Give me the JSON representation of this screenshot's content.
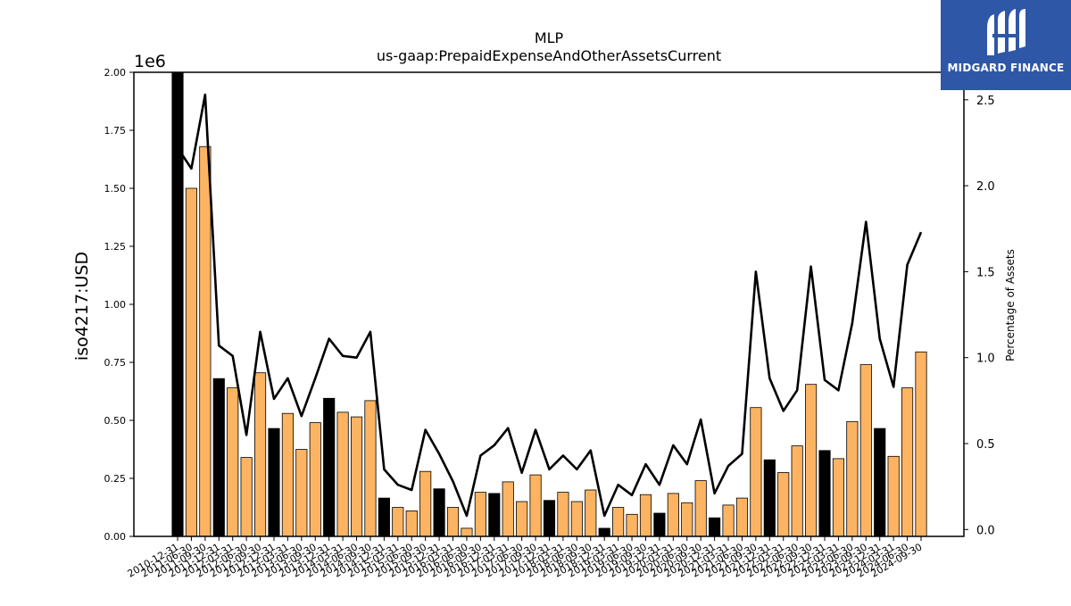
{
  "chart_data": {
    "type": "bar",
    "title": "MLP",
    "subtitle": "us-gaap:PrepaidExpenseAndOtherAssetsCurrent",
    "ylabel": "iso4217:USD",
    "ylabel_right": "Percentage of Assets",
    "y_scale_label": "1e6",
    "ylim": [
      0,
      2000000
    ],
    "ylim_right": [
      -0.04,
      2.66
    ],
    "yticks": [
      "0.00",
      "0.25",
      "0.50",
      "0.75",
      "1.00",
      "1.25",
      "1.50",
      "1.75",
      "2.00"
    ],
    "yticks_right": [
      "0.0",
      "0.5",
      "1.0",
      "1.5",
      "2.0",
      "2.5"
    ],
    "colors": {
      "annual": "#000000",
      "quarterly": "#fdb462",
      "line": "#000000"
    },
    "categories": [
      "2010-12-31",
      "2011-06-30",
      "2011-09-30",
      "2011-12-31",
      "2012-03-31",
      "2012-06-30",
      "2012-09-30",
      "2012-12-31",
      "2013-03-31",
      "2013-06-30",
      "2013-09-30",
      "2013-12-31",
      "2014-03-31",
      "2014-06-30",
      "2014-09-30",
      "2014-12-31",
      "2015-03-31",
      "2015-06-30",
      "2015-09-30",
      "2015-12-31",
      "2016-03-31",
      "2016-06-30",
      "2016-09-30",
      "2016-12-31",
      "2017-03-31",
      "2017-06-30",
      "2017-09-30",
      "2017-12-31",
      "2018-03-31",
      "2018-06-30",
      "2018-09-30",
      "2018-12-31",
      "2019-03-31",
      "2019-06-30",
      "2019-09-30",
      "2019-12-31",
      "2020-03-31",
      "2020-06-30",
      "2020-09-30",
      "2020-12-31",
      "2021-03-31",
      "2021-06-30",
      "2021-09-30",
      "2021-12-31",
      "2022-03-31",
      "2022-06-30",
      "2022-09-30",
      "2022-12-31",
      "2023-03-31",
      "2023-06-30",
      "2023-09-30",
      "2023-12-31",
      "2024-03-31",
      "2024-06-30",
      "2024-09-30"
    ],
    "values": [
      2000000,
      1500000,
      1680000,
      680000,
      640000,
      340000,
      705000,
      465000,
      530000,
      375000,
      490000,
      595000,
      535000,
      515000,
      585000,
      165000,
      125000,
      110000,
      280000,
      205000,
      125000,
      35000,
      190000,
      185000,
      235000,
      150000,
      265000,
      155000,
      190000,
      150000,
      200000,
      35000,
      125000,
      95000,
      180000,
      100000,
      185000,
      145000,
      240000,
      80000,
      135000,
      165000,
      555000,
      330000,
      275000,
      390000,
      655000,
      370000,
      335000,
      495000,
      740000,
      465000,
      345000,
      640000,
      795000
    ],
    "period_type": [
      "annual",
      "quarterly",
      "quarterly",
      "annual",
      "quarterly",
      "quarterly",
      "quarterly",
      "annual",
      "quarterly",
      "quarterly",
      "quarterly",
      "annual",
      "quarterly",
      "quarterly",
      "quarterly",
      "annual",
      "quarterly",
      "quarterly",
      "quarterly",
      "annual",
      "quarterly",
      "quarterly",
      "quarterly",
      "annual",
      "quarterly",
      "quarterly",
      "quarterly",
      "annual",
      "quarterly",
      "quarterly",
      "quarterly",
      "annual",
      "quarterly",
      "quarterly",
      "quarterly",
      "annual",
      "quarterly",
      "quarterly",
      "quarterly",
      "annual",
      "quarterly",
      "quarterly",
      "quarterly",
      "annual",
      "quarterly",
      "quarterly",
      "quarterly",
      "annual",
      "quarterly",
      "quarterly",
      "quarterly",
      "annual",
      "quarterly",
      "quarterly",
      "quarterly"
    ],
    "percent_of_assets": [
      2.22,
      2.1,
      2.53,
      1.07,
      1.01,
      0.55,
      1.15,
      0.76,
      0.88,
      0.66,
      0.88,
      1.11,
      1.01,
      1.0,
      1.15,
      0.35,
      0.26,
      0.23,
      0.58,
      0.44,
      0.28,
      0.08,
      0.43,
      0.49,
      0.59,
      0.33,
      0.58,
      0.35,
      0.43,
      0.35,
      0.46,
      0.08,
      0.26,
      0.2,
      0.38,
      0.26,
      0.49,
      0.38,
      0.64,
      0.21,
      0.37,
      0.44,
      1.5,
      0.88,
      0.69,
      0.81,
      1.53,
      0.87,
      0.81,
      1.2,
      1.79,
      1.11,
      0.83,
      1.54,
      1.73
    ],
    "grid": false,
    "legend": "none"
  },
  "logo": {
    "text": "MIDGARD FINANCE",
    "mark_letters": "M"
  }
}
